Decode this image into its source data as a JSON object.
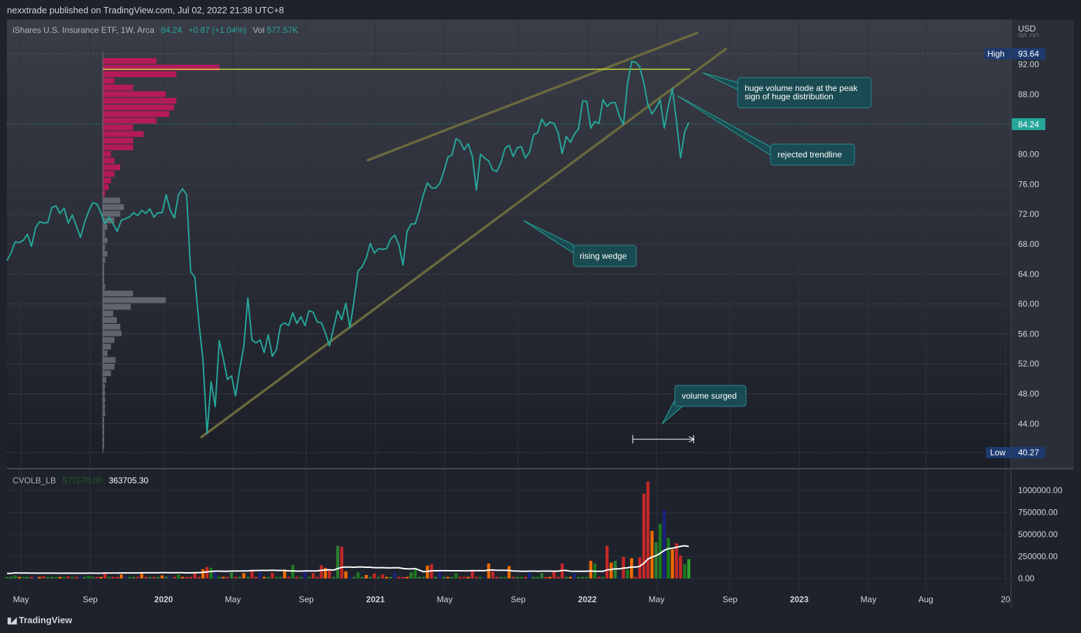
{
  "header": {
    "published": "nexxtrade published on TradingView.com, Jul 02, 2022 21:38 UTC+8"
  },
  "legend": {
    "symbol": "iShares U.S. Insurance ETF, 1W, Arca",
    "price": "84.24",
    "change": "+0.87 (+1.04%)",
    "vol_label": "Vol",
    "vol_value": "577.57K"
  },
  "indicator": {
    "name": "CVOLB_LB",
    "value1": "577570.00",
    "value2": "363705.30"
  },
  "axis": {
    "currency": "USD",
    "high_label": "High",
    "high_value": "93.64",
    "low_label": "Low",
    "low_value": "40.27",
    "last_value": "84.24",
    "top_partial": "96.00"
  },
  "annotations": [
    {
      "text": "huge volume node at the peak\nsign of huge distribution"
    },
    {
      "text": "rejected trendline"
    },
    {
      "text": "rising wedge"
    },
    {
      "text": "volume surged"
    }
  ],
  "footer": {
    "brand": "TradingView"
  },
  "colors": {
    "line": "#26a69a",
    "wedge": "#5d5c38",
    "poc": "#cddc39",
    "profile_up": "#c2185b",
    "profile_low": "#6b6e78"
  },
  "chart_data": [
    {
      "type": "line",
      "title": "iShares U.S. Insurance ETF, 1W, Arca",
      "ylim": [
        40.27,
        96.0
      ],
      "y_ticks": [
        "92.00",
        "88.00",
        "84.00",
        "80.00",
        "76.00",
        "72.00",
        "68.00",
        "64.00",
        "60.00",
        "56.00",
        "52.00",
        "48.00",
        "44.00"
      ],
      "x_ticks": [
        "May",
        "Sep",
        "2020",
        "May",
        "Sep",
        "2021",
        "May",
        "Sep",
        "2022",
        "May",
        "Sep",
        "2023",
        "May",
        "Aug",
        "20"
      ],
      "x_start": "2019-04-08",
      "series": [
        {
          "values": [
            65.8,
            66.8,
            68.3,
            68.2,
            68.5,
            69.3,
            67.7,
            70.2,
            71,
            70.8,
            70.9,
            72.9,
            73.1,
            72.1,
            72.8,
            70.8,
            71.9,
            70.4,
            68.9,
            70.9,
            72.4,
            73.5,
            73.4,
            72.2,
            70.7,
            71.6,
            70.7,
            69.7,
            71.2,
            71.4,
            71.6,
            72.2,
            71.8,
            72.5,
            72.1,
            72.7,
            71.6,
            72.2,
            72.2,
            74.6,
            72.5,
            71.5,
            74.6,
            75.4,
            74.6,
            64.3,
            63.6,
            57.6,
            52.6,
            42.7,
            49.6,
            46.3,
            55.1,
            52.7,
            49.9,
            50.4,
            47.7,
            51.3,
            54.3,
            60.8,
            55.2,
            54.8,
            55.2,
            53.5,
            55.9,
            53,
            53.9,
            57.1,
            57.5,
            57.1,
            58.8,
            57.4,
            58.3,
            57.1,
            59.1,
            58.9,
            57.6,
            57.5,
            56.1,
            54.4,
            56.8,
            59.1,
            57.9,
            60.1,
            56.8,
            60.4,
            64.4,
            65,
            66.1,
            68.1,
            66.8,
            67.4,
            67.3,
            67.4,
            68.7,
            69.2,
            67.9,
            65.2,
            69.7,
            70.7,
            70.7,
            72.5,
            74.6,
            76.2,
            75.5,
            75.5,
            76.1,
            77.7,
            79.6,
            79.9,
            82.1,
            81.7,
            80.6,
            81.4,
            79.7,
            75.2,
            80,
            79.5,
            79.1,
            77.9,
            77.7,
            78.9,
            80.8,
            81.2,
            79.7,
            80.9,
            81,
            79.5,
            80.3,
            82.6,
            82.9,
            84.7,
            83.8,
            84.3,
            84.1,
            82.9,
            80.1,
            82.4,
            81.6,
            82.7,
            83.4,
            87.1,
            87.1,
            83.5,
            84.4,
            84.1,
            87.3,
            86.4,
            86.9,
            86.9,
            85.1,
            84,
            89.4,
            92.4,
            92.3,
            91.7,
            89.5,
            86.6,
            85.4,
            86.2,
            87.3,
            83.5,
            86.4,
            88.8,
            84.4,
            79.5,
            83,
            84.24
          ]
        }
      ]
    },
    {
      "type": "bar",
      "title": "Volume profile",
      "orientation": "horizontal",
      "price_levels_top_to_bottom": [
        92.9,
        92.0,
        91.1,
        90.2,
        89.3,
        88.4,
        87.5,
        86.6,
        85.7,
        84.8,
        83.9,
        83.0,
        82.1,
        81.2,
        80.3,
        79.4,
        78.5,
        77.6,
        76.7,
        75.8,
        74.9,
        74.0,
        73.1,
        72.2,
        71.3,
        70.4,
        69.5,
        68.6,
        67.7,
        66.8,
        65.9,
        65.0,
        64.1,
        63.2,
        62.3,
        61.4,
        60.5,
        59.6,
        58.7,
        57.8,
        56.9,
        56.0,
        55.1,
        54.2,
        53.3,
        52.4,
        51.5,
        50.6,
        49.7,
        48.8,
        47.9,
        47.0,
        46.1,
        45.2,
        44.3,
        43.4,
        42.5,
        41.6,
        40.7
      ],
      "volumes": [
        0.46,
        1.0,
        0.63,
        0.1,
        0.26,
        0.54,
        0.63,
        0.61,
        0.57,
        0.46,
        0.26,
        0.35,
        0.26,
        0.26,
        0.07,
        0.1,
        0.15,
        0.1,
        0.07,
        0.05,
        0.02,
        0.15,
        0.18,
        0.15,
        0.1,
        0.04,
        0.02,
        0.04,
        0.02,
        0.04,
        0.02,
        0.01,
        0.01,
        0.01,
        0.02,
        0.26,
        0.54,
        0.24,
        0.09,
        0.12,
        0.15,
        0.16,
        0.1,
        0.07,
        0.04,
        0.11,
        0.1,
        0.07,
        0.03,
        0.02,
        0.02,
        0.02,
        0.02,
        0.02,
        0.01,
        0.01,
        0.01,
        0.01,
        0.01
      ],
      "point_of_control": 91.4
    },
    {
      "type": "bar",
      "title": "CVOLB_LB",
      "ylim": [
        0,
        1150000
      ],
      "y_ticks": [
        "1000000.00",
        "750000.00",
        "500000.00",
        "250000.00",
        "0.00"
      ],
      "volume_spikes": [
        {
          "index": 2,
          "value": 35000
        },
        {
          "index": 9,
          "value": 25000
        },
        {
          "index": 15,
          "value": 25000
        },
        {
          "index": 20,
          "value": 30000
        },
        {
          "index": 24,
          "value": 60000
        },
        {
          "index": 28,
          "value": 45000
        },
        {
          "index": 33,
          "value": 55000
        },
        {
          "index": 38,
          "value": 35000
        },
        {
          "index": 42,
          "value": 45000
        },
        {
          "index": 46,
          "value": 70000
        },
        {
          "index": 48,
          "value": 105000
        },
        {
          "index": 49,
          "value": 130000
        },
        {
          "index": 50,
          "value": 120000
        },
        {
          "index": 51,
          "value": 90000
        },
        {
          "index": 55,
          "value": 70000
        },
        {
          "index": 58,
          "value": 60000
        },
        {
          "index": 60,
          "value": 100000
        },
        {
          "index": 62,
          "value": 75000
        },
        {
          "index": 65,
          "value": 65000
        },
        {
          "index": 68,
          "value": 100000
        },
        {
          "index": 70,
          "value": 155000
        },
        {
          "index": 73,
          "value": 80000
        },
        {
          "index": 75,
          "value": 60000
        },
        {
          "index": 77,
          "value": 150000
        },
        {
          "index": 78,
          "value": 120000
        },
        {
          "index": 79,
          "value": 90000
        },
        {
          "index": 81,
          "value": 370000
        },
        {
          "index": 82,
          "value": 360000
        },
        {
          "index": 83,
          "value": 80000
        },
        {
          "index": 86,
          "value": 70000
        },
        {
          "index": 88,
          "value": 40000
        },
        {
          "index": 90,
          "value": 55000
        },
        {
          "index": 92,
          "value": 45000
        },
        {
          "index": 95,
          "value": 65000
        },
        {
          "index": 99,
          "value": 70000
        },
        {
          "index": 100,
          "value": 100000
        },
        {
          "index": 103,
          "value": 145000
        },
        {
          "index": 104,
          "value": 160000
        },
        {
          "index": 106,
          "value": 90000
        },
        {
          "index": 110,
          "value": 60000
        },
        {
          "index": 114,
          "value": 95000
        },
        {
          "index": 118,
          "value": 170000
        },
        {
          "index": 119,
          "value": 80000
        },
        {
          "index": 123,
          "value": 140000
        },
        {
          "index": 128,
          "value": 70000
        },
        {
          "index": 131,
          "value": 60000
        },
        {
          "index": 134,
          "value": 80000
        },
        {
          "index": 136,
          "value": 170000
        },
        {
          "index": 139,
          "value": 60000
        },
        {
          "index": 143,
          "value": 200000
        },
        {
          "index": 144,
          "value": 170000
        },
        {
          "index": 147,
          "value": 370000
        },
        {
          "index": 148,
          "value": 180000
        },
        {
          "index": 149,
          "value": 200000
        },
        {
          "index": 151,
          "value": 245000
        },
        {
          "index": 152,
          "value": 100000
        },
        {
          "index": 153,
          "value": 230000
        },
        {
          "index": 155,
          "value": 240000
        },
        {
          "index": 156,
          "value": 960000
        },
        {
          "index": 157,
          "value": 1100000
        },
        {
          "index": 158,
          "value": 540000
        },
        {
          "index": 159,
          "value": 410000
        },
        {
          "index": 160,
          "value": 620000
        },
        {
          "index": 161,
          "value": 780000
        },
        {
          "index": 162,
          "value": 460000
        },
        {
          "index": 163,
          "value": 330000
        },
        {
          "index": 164,
          "value": 400000
        },
        {
          "index": 165,
          "value": 260000
        },
        {
          "index": 166,
          "value": 160000
        },
        {
          "index": 167,
          "value": 220000
        },
        {
          "index": 168,
          "value": 200000
        },
        {
          "index": 169,
          "value": 577570
        }
      ],
      "base_volume": 18000,
      "moving_average_end": 363705.3
    }
  ]
}
